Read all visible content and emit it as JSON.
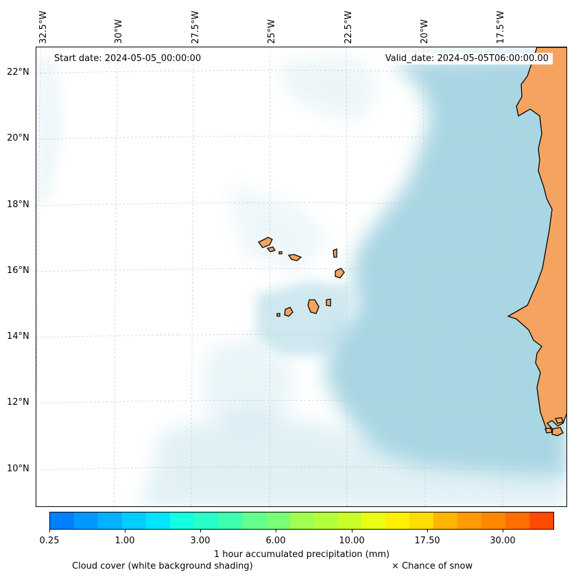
{
  "map": {
    "start_date": "Start date: 2024-05-05_00:00:00",
    "valid_date": "Valid_date: 2024-05-05T06:00:00.00",
    "longitude_labels": [
      "32.5°W",
      "30°W",
      "27.5°W",
      "25°W",
      "22.5°W",
      "20°W",
      "17.5°W"
    ],
    "latitude_labels": [
      "22°N",
      "20°N",
      "18°N",
      "16°N",
      "14°N",
      "12°N",
      "10°N"
    ],
    "colors": {
      "land": "#f4a460",
      "coastline": "#000000",
      "cloud_cover": "#a9d6e3",
      "gridline": "#c8c8c8"
    }
  },
  "colorbar": {
    "label": "1 hour accumulated precipitation (mm)",
    "tick_labels": [
      "0.25",
      "1.00",
      "3.00",
      "6.00",
      "10.00",
      "17.50",
      "30.00"
    ],
    "colors": [
      "#0080ff",
      "#0099ff",
      "#00b2ff",
      "#00ccff",
      "#00e5ff",
      "#14ffe0",
      "#28ffc8",
      "#3cffb0",
      "#64ff8c",
      "#78ff78",
      "#a0ff50",
      "#b4ff3c",
      "#c8ff28",
      "#e6ff14",
      "#fff000",
      "#ffdc00",
      "#ffb400",
      "#ff9b00",
      "#ff8700",
      "#ff6e00",
      "#ff4b00"
    ]
  },
  "captions": {
    "cloud_cover": "Cloud cover (white background shading)",
    "snow": "× Chance of snow"
  }
}
